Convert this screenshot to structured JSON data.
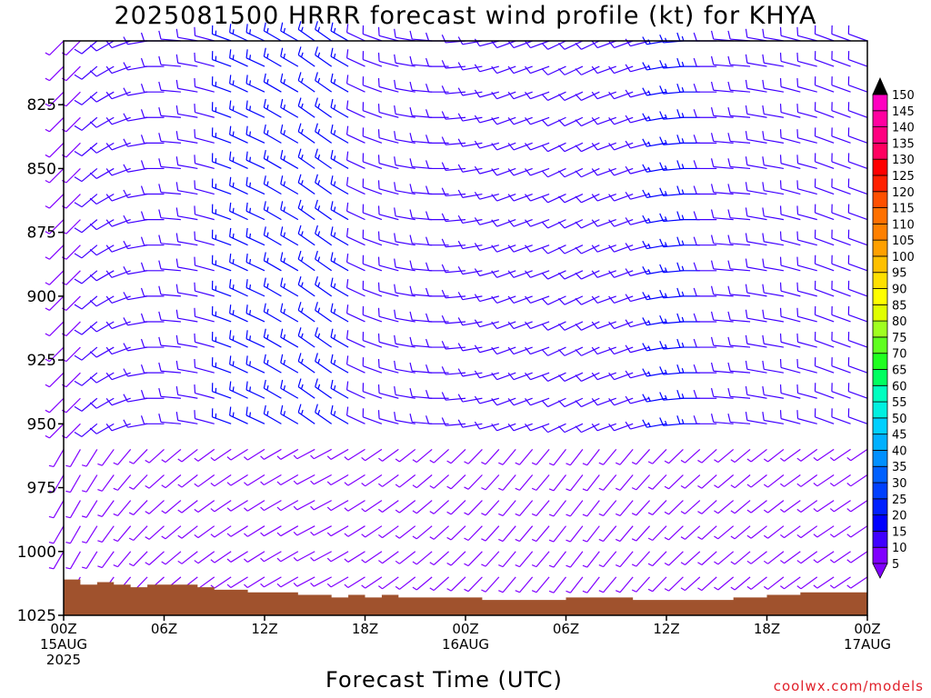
{
  "title": "2025081500 HRRR forecast wind profile (kt) for KHYA",
  "credit": "coolwx.com/models",
  "chart_data": {
    "type": "wind_barb_time_height",
    "title": "2025081500 HRRR forecast wind profile (kt) for KHYA",
    "xlabel": "Forecast Time (UTC)",
    "ylabel": "",
    "x_range_hours": [
      0,
      48
    ],
    "y_range_hPa": [
      800,
      1025
    ],
    "y_ticks": [
      825,
      850,
      875,
      900,
      925,
      950,
      975,
      1000,
      1025
    ],
    "x_ticks": [
      {
        "hour": 0,
        "lines": [
          "00Z",
          "15AUG",
          "2025"
        ]
      },
      {
        "hour": 6,
        "lines": [
          "06Z"
        ]
      },
      {
        "hour": 12,
        "lines": [
          "12Z"
        ]
      },
      {
        "hour": 18,
        "lines": [
          "18Z"
        ]
      },
      {
        "hour": 24,
        "lines": [
          "00Z",
          "16AUG"
        ]
      },
      {
        "hour": 30,
        "lines": [
          "06Z"
        ]
      },
      {
        "hour": 36,
        "lines": [
          "12Z"
        ]
      },
      {
        "hour": 42,
        "lines": [
          "18Z"
        ]
      },
      {
        "hour": 48,
        "lines": [
          "00Z",
          "17AUG"
        ]
      }
    ],
    "colorbar": {
      "levels": [
        5,
        10,
        15,
        20,
        25,
        30,
        35,
        40,
        45,
        50,
        55,
        60,
        65,
        70,
        75,
        80,
        85,
        90,
        95,
        100,
        105,
        110,
        115,
        120,
        125,
        130,
        135,
        140,
        145,
        150
      ],
      "colors": [
        "#8000ff",
        "#4000ff",
        "#0000ff",
        "#0020ff",
        "#0040ff",
        "#0060ff",
        "#0090ff",
        "#00b0ff",
        "#00d0ff",
        "#00f0e0",
        "#00ffc0",
        "#00ff60",
        "#20ff20",
        "#60ff20",
        "#a0ff20",
        "#e0ff00",
        "#ffff00",
        "#ffe000",
        "#ffc000",
        "#ffa000",
        "#ff8000",
        "#ff7000",
        "#ff5000",
        "#ff2000",
        "#ff0000",
        "#ff0060",
        "#ff0080",
        "#ff00a0",
        "#ff00c0",
        "#ff00e0"
      ]
    },
    "surface_pressure_hPa": [
      1011,
      1013,
      1012,
      1013,
      1014,
      1013,
      1013,
      1013,
      1014,
      1015,
      1015,
      1016,
      1016,
      1016,
      1017,
      1017,
      1018,
      1017,
      1018,
      1017,
      1018,
      1018,
      1018,
      1018,
      1018,
      1019,
      1019,
      1019,
      1019,
      1019,
      1018,
      1018,
      1018,
      1018,
      1019,
      1019,
      1019,
      1019,
      1019,
      1019,
      1018,
      1018,
      1017,
      1017,
      1016,
      1016,
      1016,
      1016,
      1016
    ],
    "barb_hours": [
      0,
      1,
      2,
      3,
      4,
      5,
      6,
      7,
      8,
      9,
      10,
      11,
      12,
      13,
      14,
      15,
      16,
      17,
      18,
      19,
      20,
      21,
      22,
      23,
      24,
      25,
      26,
      27,
      28,
      29,
      30,
      31,
      32,
      33,
      34,
      35,
      36,
      37,
      38,
      39,
      40,
      41,
      42,
      43,
      44,
      45,
      46,
      47,
      48
    ],
    "barb_levels_hPa": [
      800,
      810,
      820,
      830,
      840,
      850,
      860,
      870,
      880,
      890,
      900,
      910,
      920,
      930,
      940,
      950,
      960,
      970,
      980,
      990,
      1000,
      1010,
      1020
    ],
    "wind_dir_by_hour": [
      225,
      225,
      230,
      240,
      250,
      260,
      270,
      275,
      280,
      285,
      290,
      295,
      295,
      300,
      300,
      305,
      305,
      300,
      295,
      290,
      285,
      280,
      275,
      270,
      265,
      260,
      255,
      250,
      250,
      250,
      245,
      245,
      245,
      250,
      250,
      255,
      260,
      265,
      270,
      270,
      275,
      275,
      280,
      280,
      285,
      285,
      290,
      290,
      290
    ],
    "wind_speed_by_hour_kt": [
      8,
      9,
      10,
      10,
      11,
      12,
      12,
      12,
      13,
      14,
      15,
      16,
      17,
      18,
      18,
      17,
      16,
      15,
      14,
      13,
      12,
      12,
      12,
      13,
      14,
      14,
      14,
      13,
      12,
      12,
      12,
      12,
      13,
      13,
      14,
      14,
      15,
      15,
      15,
      14,
      14,
      13,
      13,
      12,
      12,
      11,
      11,
      10,
      10
    ],
    "low_level_wind_dir": 200,
    "low_level_speed_kt": 8
  }
}
